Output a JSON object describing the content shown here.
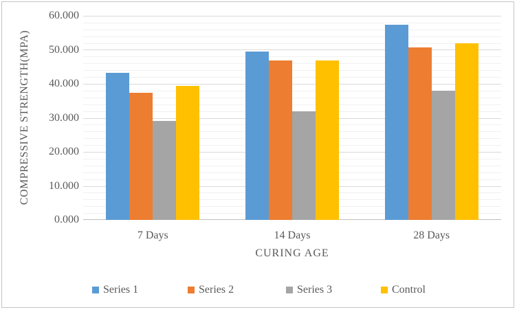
{
  "chart_data": {
    "type": "bar",
    "title": "",
    "xlabel": "CURING AGE",
    "ylabel": "COMPRESSIVE STRENGTH(MPA)",
    "categories": [
      "7 Days",
      "14 Days",
      "28 Days"
    ],
    "series": [
      {
        "name": "Series 1",
        "color": "#5B9BD5",
        "values": [
          43.2,
          49.6,
          57.3
        ]
      },
      {
        "name": "Series 2",
        "color": "#ED7D31",
        "values": [
          37.3,
          46.9,
          50.8
        ]
      },
      {
        "name": "Series 3",
        "color": "#A5A5A5",
        "values": [
          29.0,
          32.0,
          38.0
        ]
      },
      {
        "name": "Control",
        "color": "#FFC000",
        "values": [
          39.5,
          46.9,
          52.0
        ]
      }
    ],
    "ylim": [
      0,
      60
    ],
    "y_major_step": 10,
    "y_minor_step": 2,
    "y_tick_labels": [
      "60.000",
      "50.000",
      "40.000",
      "30.000",
      "20.000",
      "10.000",
      "0.000"
    ],
    "grid": true,
    "legend_position": "bottom",
    "legend": [
      "Series 1",
      "Series 2",
      "Series 3",
      "Control"
    ]
  },
  "style": {
    "text_color": "#595959",
    "major_gridline_color": "#D9D9D9",
    "minor_gridline_color": "#F0F0F0",
    "axis_line_color": "#BFBFBF",
    "frame_border_color": "#C4C4C4",
    "background_color": "#FFFFFF"
  }
}
